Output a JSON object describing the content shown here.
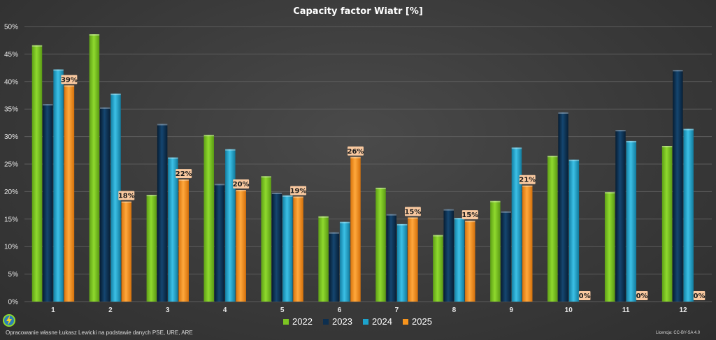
{
  "chart_data": {
    "type": "bar",
    "title": "Capacity factor Wiatr [%]",
    "categories": [
      "1",
      "2",
      "3",
      "4",
      "5",
      "6",
      "7",
      "8",
      "9",
      "10",
      "11",
      "12"
    ],
    "ylim": [
      0,
      50
    ],
    "yticks": [
      "0%",
      "5%",
      "10%",
      "15%",
      "20%",
      "25%",
      "30%",
      "35%",
      "40%",
      "45%",
      "50%"
    ],
    "grid": true,
    "legend_position": "bottom",
    "series": [
      {
        "name": "2022",
        "color": "#7cc522",
        "values": [
          46.6,
          48.6,
          19.4,
          30.3,
          22.8,
          15.5,
          20.7,
          12.1,
          18.3,
          26.5,
          19.9,
          28.3
        ]
      },
      {
        "name": "2023",
        "color": "#0d2f4f",
        "values": [
          35.9,
          35.3,
          32.3,
          21.4,
          19.8,
          12.6,
          15.9,
          16.8,
          16.4,
          34.4,
          31.2,
          42.1
        ]
      },
      {
        "name": "2024",
        "color": "#1da3cc",
        "values": [
          42.2,
          37.8,
          26.2,
          27.7,
          19.3,
          14.5,
          14.1,
          15.2,
          28.0,
          25.8,
          29.2,
          31.4
        ]
      },
      {
        "name": "2025",
        "color": "#f7941d",
        "values": [
          39.3,
          18.2,
          22.2,
          20.3,
          19.1,
          26.3,
          15.3,
          14.7,
          21.1,
          0,
          0,
          0
        ]
      }
    ],
    "data_labels": [
      "39%",
      "18%",
      "22%",
      "20%",
      "19%",
      "26%",
      "15%",
      "15%",
      "21%",
      "0%",
      "0%",
      "0%"
    ]
  },
  "footer": {
    "source": "Opracowanie własne Łukasz Lewicki na podstawie danych PSE, URE, ARE",
    "license": "Licencja: CC-BY-SA 4.0"
  },
  "logo_icon": "lightning-bolt-icon"
}
